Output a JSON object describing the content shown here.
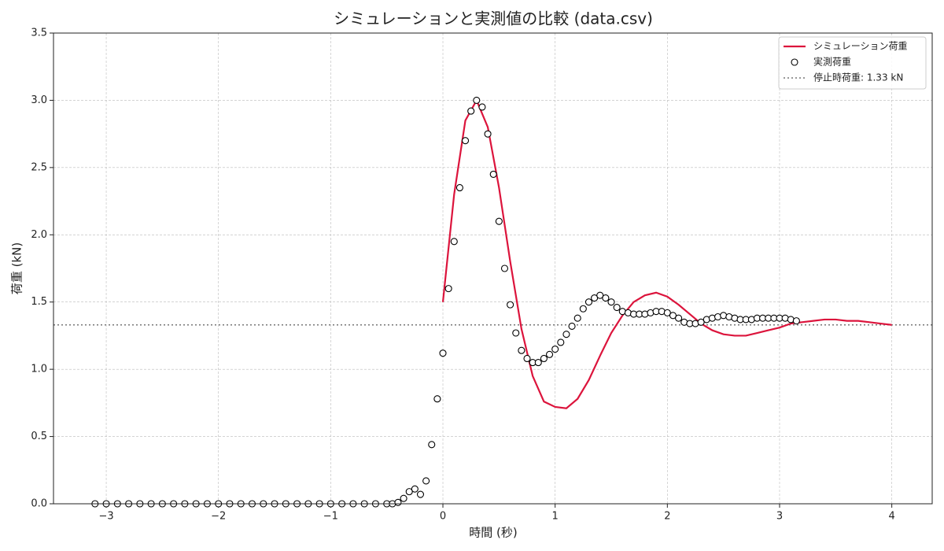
{
  "chart_data": {
    "type": "line",
    "title": "シミュレーションと実測値の比較 (data.csv)",
    "xlabel": "時間 (秒)",
    "ylabel": "荷重 (kN)",
    "xlim": [
      -3.47,
      4.36
    ],
    "ylim": [
      0,
      3.5
    ],
    "xticks": [
      {
        "value": -3,
        "label": "−3"
      },
      {
        "value": -2,
        "label": "−2"
      },
      {
        "value": -1,
        "label": "−1"
      },
      0,
      1,
      2,
      3,
      4
    ],
    "yticks": [
      {
        "value": 0,
        "label": "0.0"
      },
      0.5,
      {
        "value": 1,
        "label": "1.0"
      },
      1.5,
      {
        "value": 2,
        "label": "2.0"
      },
      2.5,
      {
        "value": 3,
        "label": "3.0"
      },
      3.5
    ],
    "grid": true,
    "legend": "upper right",
    "series": [
      {
        "name": "シミュレーション荷重",
        "style": "line",
        "color": "#dc143c",
        "x": [
          0,
          0.1,
          0.2,
          0.3,
          0.4,
          0.5,
          0.6,
          0.7,
          0.8,
          0.9,
          1,
          1.1,
          1.2,
          1.3,
          1.4,
          1.5,
          1.6,
          1.7,
          1.8,
          1.9,
          2,
          2.1,
          2.2,
          2.3,
          2.4,
          2.5,
          2.6,
          2.7,
          2.8,
          2.9,
          3,
          3.1,
          3.2,
          3.3,
          3.4,
          3.5,
          3.6,
          3.7,
          3.8,
          3.9,
          4
        ],
        "values": [
          1.5,
          2.3,
          2.85,
          3.0,
          2.8,
          2.35,
          1.8,
          1.3,
          0.95,
          0.76,
          0.72,
          0.71,
          0.78,
          0.92,
          1.1,
          1.27,
          1.4,
          1.5,
          1.55,
          1.57,
          1.54,
          1.48,
          1.41,
          1.34,
          1.29,
          1.26,
          1.25,
          1.25,
          1.27,
          1.29,
          1.31,
          1.34,
          1.35,
          1.36,
          1.37,
          1.37,
          1.36,
          1.36,
          1.35,
          1.34,
          1.33
        ]
      },
      {
        "name": "実測荷重",
        "style": "scatter",
        "color": "#000000",
        "x": [
          -3.1,
          -3,
          -2.9,
          -2.8,
          -2.7,
          -2.6,
          -2.5,
          -2.4,
          -2.3,
          -2.2,
          -2.1,
          -2,
          -1.9,
          -1.8,
          -1.7,
          -1.6,
          -1.5,
          -1.4,
          -1.3,
          -1.2,
          -1.1,
          -1,
          -0.9,
          -0.8,
          -0.7,
          -0.6,
          -0.5,
          -0.45,
          -0.4,
          -0.35,
          -0.3,
          -0.25,
          -0.2,
          -0.15,
          -0.1,
          -0.05,
          0,
          0.05,
          0.1,
          0.15,
          0.2,
          0.25,
          0.3,
          0.35,
          0.4,
          0.45,
          0.5,
          0.55,
          0.6,
          0.65,
          0.7,
          0.75,
          0.8,
          0.85,
          0.9,
          0.95,
          1,
          1.05,
          1.1,
          1.15,
          1.2,
          1.25,
          1.3,
          1.35,
          1.4,
          1.45,
          1.5,
          1.55,
          1.6,
          1.65,
          1.7,
          1.75,
          1.8,
          1.85,
          1.9,
          1.95,
          2,
          2.05,
          2.1,
          2.15,
          2.2,
          2.25,
          2.3,
          2.35,
          2.4,
          2.45,
          2.5,
          2.55,
          2.6,
          2.65,
          2.7,
          2.75,
          2.8,
          2.85,
          2.9,
          2.95,
          3,
          3.05,
          3.1,
          3.15
        ],
        "values": [
          0,
          0,
          0,
          0,
          0,
          0,
          0,
          0,
          0,
          0,
          0,
          0,
          0,
          0,
          0,
          0,
          0,
          0,
          0,
          0,
          0,
          0,
          0,
          0,
          0,
          0,
          0,
          0,
          0.01,
          0.04,
          0.09,
          0.11,
          0.07,
          0.17,
          0.44,
          0.78,
          1.12,
          1.6,
          1.95,
          2.35,
          2.7,
          2.92,
          3.0,
          2.95,
          2.75,
          2.45,
          2.1,
          1.75,
          1.48,
          1.27,
          1.14,
          1.08,
          1.05,
          1.05,
          1.08,
          1.11,
          1.15,
          1.2,
          1.26,
          1.32,
          1.38,
          1.45,
          1.5,
          1.53,
          1.55,
          1.53,
          1.5,
          1.46,
          1.43,
          1.42,
          1.41,
          1.41,
          1.41,
          1.42,
          1.43,
          1.43,
          1.42,
          1.4,
          1.38,
          1.35,
          1.34,
          1.34,
          1.35,
          1.37,
          1.38,
          1.39,
          1.4,
          1.39,
          1.38,
          1.37,
          1.37,
          1.37,
          1.38,
          1.38,
          1.38,
          1.38,
          1.38,
          1.38,
          1.37,
          1.36
        ]
      }
    ],
    "hline": {
      "value": 1.33,
      "label": "停止時荷重: 1.33 kN",
      "color": "#777777"
    }
  }
}
